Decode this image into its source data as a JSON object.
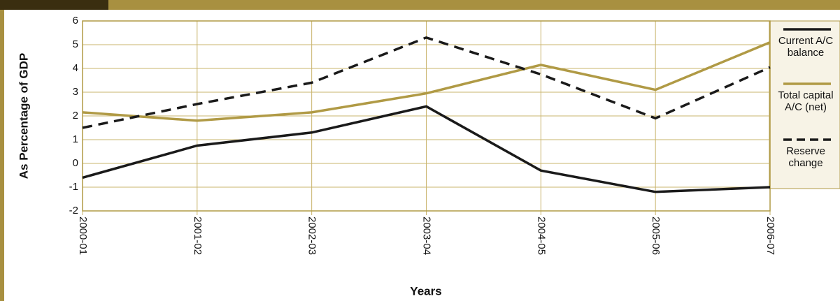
{
  "chart_data": {
    "type": "line",
    "y_label": "As Percentage of GDP",
    "x_label": "Years",
    "categories": [
      "2000-01",
      "2001-02",
      "2002-03",
      "2003-04",
      "2004-05",
      "2005-06",
      "2006-07"
    ],
    "series": [
      {
        "name": "Current A/C balance",
        "color": "#1a1a1a",
        "dashed": false,
        "values": [
          -0.6,
          0.75,
          1.3,
          2.4,
          -0.3,
          -1.2,
          -1.0
        ]
      },
      {
        "name": "Total capital A/C (net)",
        "color": "#b09a45",
        "dashed": false,
        "values": [
          2.15,
          1.8,
          2.15,
          2.95,
          4.15,
          3.1,
          5.1
        ]
      },
      {
        "name": "Reserve change",
        "color": "#1a1a1a",
        "dashed": true,
        "values": [
          1.5,
          2.5,
          3.4,
          5.3,
          3.75,
          1.9,
          4.05
        ]
      }
    ],
    "ylim": [
      -2,
      6
    ],
    "yticks": [
      -2,
      -1,
      0,
      1,
      2,
      3,
      4,
      5,
      6
    ],
    "grid": true
  }
}
